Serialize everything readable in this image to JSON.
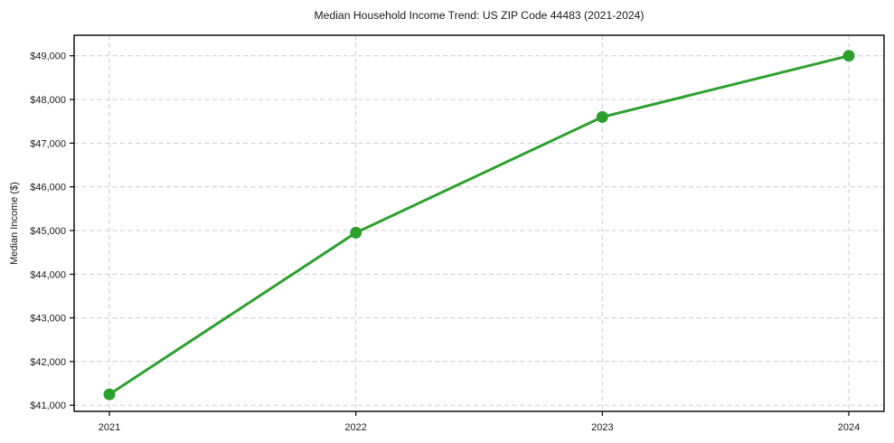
{
  "page": {
    "background": "#ffffff"
  },
  "chart_data": {
    "type": "line",
    "title": "Median Household Income Trend: US ZIP Code 44483 (2021-2024)",
    "xlabel": "",
    "ylabel": "Median Income ($)",
    "x": [
      2021,
      2022,
      2023,
      2024
    ],
    "x_tick_labels": [
      "2021",
      "2022",
      "2023",
      "2024"
    ],
    "series": [
      {
        "name": "Median Household Income",
        "values": [
          41250,
          44950,
          47600,
          49000
        ],
        "color": "#2ca02c",
        "marker": "circle"
      }
    ],
    "y_ticks": [
      41000,
      42000,
      43000,
      44000,
      45000,
      46000,
      47000,
      48000,
      49000
    ],
    "y_tick_labels": [
      "$41,000",
      "$42,000",
      "$43,000",
      "$44,000",
      "$45,000",
      "$46,000",
      "$47,000",
      "$48,000",
      "$49,000"
    ],
    "ylim": [
      40860,
      49470
    ],
    "grid": {
      "visible": true,
      "style": "dashed",
      "color": "#cccccc",
      "axes": "both"
    },
    "legend": "none",
    "plot_background": "#ffffff",
    "spine_color": "#000000"
  }
}
